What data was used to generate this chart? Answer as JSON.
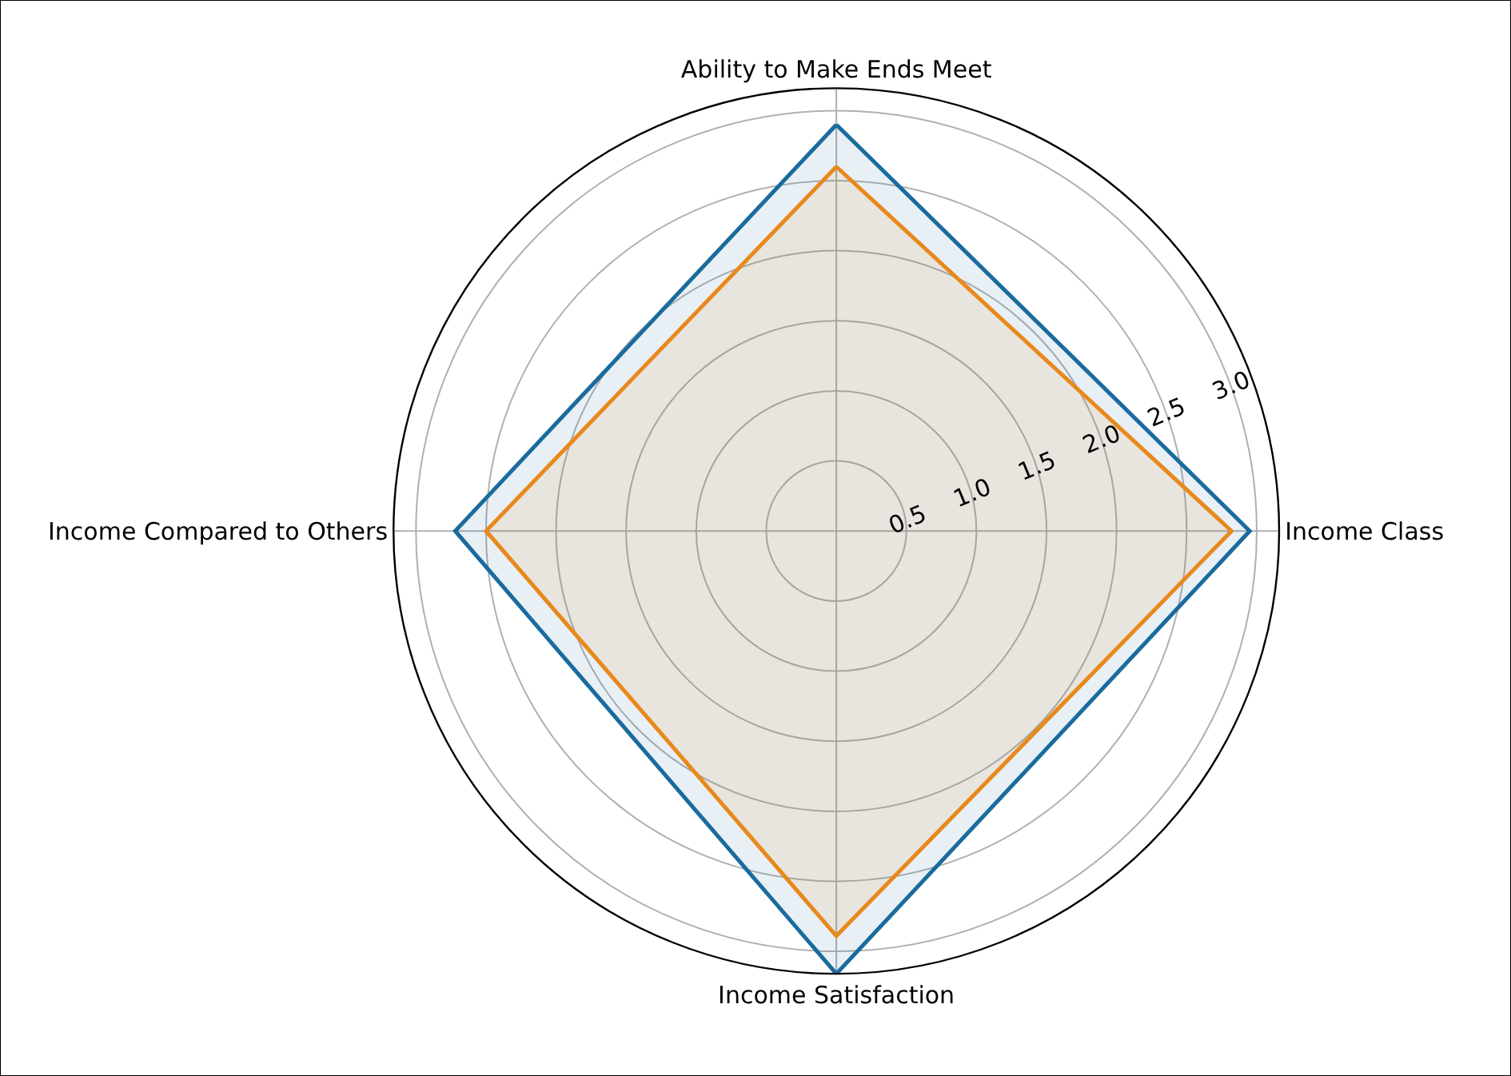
{
  "chart_data": {
    "type": "radar",
    "categories": [
      "Ability to Make Ends Meet",
      "Income Class",
      "Income Satisfaction",
      "Income Compared to Others"
    ],
    "series": [
      {
        "color": "#1a6b9e",
        "values": [
          2.9,
          2.95,
          3.16,
          2.72
        ]
      },
      {
        "color": "#e8891c",
        "values": [
          2.6,
          2.82,
          2.89,
          2.5
        ]
      }
    ],
    "ylim": [
      0,
      3.16
    ],
    "yticks": [
      0.5,
      {
        "value": 1.0,
        "label": "1.0"
      },
      1.5,
      {
        "value": 2.0,
        "label": "2.0"
      },
      2.5,
      {
        "value": 3.0,
        "label": "3.0"
      }
    ],
    "grid": true
  }
}
